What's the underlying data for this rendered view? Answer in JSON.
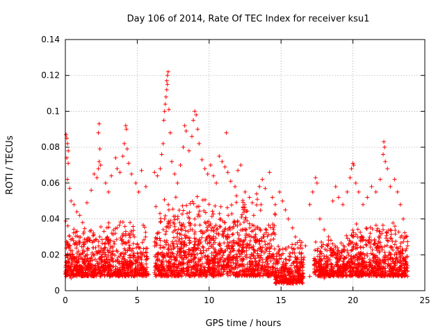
{
  "chart_data": {
    "type": "scatter",
    "title": "Day 106 of 2014, Rate Of TEC Index for receiver ksu1",
    "xlabel": "GPS time / hours",
    "ylabel": "ROTI / TECUs",
    "xlim": [
      0,
      25
    ],
    "ylim": [
      0,
      0.14
    ],
    "xticks": [
      0,
      5,
      10,
      15,
      20,
      25
    ],
    "xtick_labels": [
      "0",
      "5",
      "10",
      "15",
      "20",
      "25"
    ],
    "yticks": [
      0,
      0.02,
      0.04,
      0.06,
      0.08,
      0.1,
      0.12,
      0.14
    ],
    "ytick_labels": [
      "0",
      "0.02",
      "0.04",
      "0.06",
      "0.08",
      "0.1",
      "0.12",
      "0.14"
    ],
    "grid": true,
    "marker": "plus",
    "series_color": "#ff0000",
    "series": [
      {
        "name": "ROTI",
        "points": [
          [
            0.05,
            0.087
          ],
          [
            0.1,
            0.085
          ],
          [
            0.15,
            0.082
          ],
          [
            0.2,
            0.078
          ],
          [
            0.1,
            0.074
          ],
          [
            0.2,
            0.071
          ],
          [
            0.15,
            0.062
          ],
          [
            0.3,
            0.057
          ],
          [
            0.4,
            0.05
          ],
          [
            0.6,
            0.048
          ],
          [
            0.8,
            0.044
          ],
          [
            1.0,
            0.042
          ],
          [
            1.2,
            0.038
          ],
          [
            1.5,
            0.049
          ],
          [
            1.8,
            0.056
          ],
          [
            2.0,
            0.065
          ],
          [
            2.2,
            0.063
          ],
          [
            2.3,
            0.068
          ],
          [
            2.35,
            0.072
          ],
          [
            2.3,
            0.088
          ],
          [
            2.35,
            0.093
          ],
          [
            2.4,
            0.079
          ],
          [
            2.45,
            0.07
          ],
          [
            2.8,
            0.06
          ],
          [
            3.0,
            0.055
          ],
          [
            3.2,
            0.064
          ],
          [
            3.5,
            0.074
          ],
          [
            3.6,
            0.068
          ],
          [
            3.8,
            0.066
          ],
          [
            4.0,
            0.075
          ],
          [
            4.1,
            0.082
          ],
          [
            4.2,
            0.092
          ],
          [
            4.25,
            0.09
          ],
          [
            4.3,
            0.079
          ],
          [
            4.4,
            0.071
          ],
          [
            4.6,
            0.065
          ],
          [
            4.9,
            0.06
          ],
          [
            5.1,
            0.055
          ],
          [
            5.3,
            0.067
          ],
          [
            5.6,
            0.058
          ],
          [
            6.2,
            0.066
          ],
          [
            6.4,
            0.064
          ],
          [
            6.6,
            0.068
          ],
          [
            6.7,
            0.076
          ],
          [
            6.8,
            0.082
          ],
          [
            6.85,
            0.095
          ],
          [
            6.9,
            0.1
          ],
          [
            6.95,
            0.104
          ],
          [
            7.0,
            0.108
          ],
          [
            7.05,
            0.112
          ],
          [
            7.05,
            0.117
          ],
          [
            7.1,
            0.12
          ],
          [
            7.15,
            0.122
          ],
          [
            7.1,
            0.115
          ],
          [
            7.2,
            0.101
          ],
          [
            7.3,
            0.088
          ],
          [
            7.4,
            0.072
          ],
          [
            7.6,
            0.065
          ],
          [
            7.8,
            0.06
          ],
          [
            8.0,
            0.07
          ],
          [
            8.2,
            0.08
          ],
          [
            8.3,
            0.092
          ],
          [
            8.4,
            0.089
          ],
          [
            8.6,
            0.078
          ],
          [
            8.8,
            0.086
          ],
          [
            8.9,
            0.095
          ],
          [
            9.0,
            0.1
          ],
          [
            9.1,
            0.098
          ],
          [
            9.2,
            0.09
          ],
          [
            9.3,
            0.082
          ],
          [
            9.5,
            0.073
          ],
          [
            9.7,
            0.068
          ],
          [
            9.9,
            0.065
          ],
          [
            10.1,
            0.07
          ],
          [
            10.3,
            0.064
          ],
          [
            10.5,
            0.06
          ],
          [
            10.7,
            0.075
          ],
          [
            10.9,
            0.072
          ],
          [
            11.1,
            0.069
          ],
          [
            11.2,
            0.088
          ],
          [
            11.3,
            0.066
          ],
          [
            11.5,
            0.061
          ],
          [
            11.8,
            0.058
          ],
          [
            12.0,
            0.067
          ],
          [
            12.2,
            0.07
          ],
          [
            12.5,
            0.055
          ],
          [
            12.8,
            0.052
          ],
          [
            13.0,
            0.049
          ],
          [
            13.3,
            0.054
          ],
          [
            13.5,
            0.058
          ],
          [
            13.7,
            0.062
          ],
          [
            13.9,
            0.057
          ],
          [
            14.2,
            0.066
          ],
          [
            14.4,
            0.052
          ],
          [
            14.6,
            0.048
          ],
          [
            14.9,
            0.055
          ],
          [
            15.1,
            0.05
          ],
          [
            15.3,
            0.045
          ],
          [
            15.5,
            0.04
          ],
          [
            15.8,
            0.035
          ],
          [
            16.0,
            0.03
          ],
          [
            16.3,
            0.028
          ],
          [
            16.7,
            0.025
          ],
          [
            17.0,
            0.048
          ],
          [
            17.2,
            0.055
          ],
          [
            17.4,
            0.063
          ],
          [
            17.5,
            0.06
          ],
          [
            17.7,
            0.04
          ],
          [
            18.0,
            0.034
          ],
          [
            18.3,
            0.03
          ],
          [
            18.6,
            0.05
          ],
          [
            18.8,
            0.058
          ],
          [
            19.0,
            0.052
          ],
          [
            19.3,
            0.048
          ],
          [
            19.6,
            0.055
          ],
          [
            19.8,
            0.063
          ],
          [
            19.9,
            0.068
          ],
          [
            20.0,
            0.071
          ],
          [
            20.05,
            0.07
          ],
          [
            20.2,
            0.06
          ],
          [
            20.4,
            0.055
          ],
          [
            20.7,
            0.048
          ],
          [
            21.0,
            0.052
          ],
          [
            21.3,
            0.058
          ],
          [
            21.6,
            0.055
          ],
          [
            21.9,
            0.062
          ],
          [
            22.1,
            0.076
          ],
          [
            22.15,
            0.083
          ],
          [
            22.2,
            0.08
          ],
          [
            22.25,
            0.072
          ],
          [
            22.4,
            0.068
          ],
          [
            22.6,
            0.058
          ],
          [
            22.9,
            0.062
          ],
          [
            23.1,
            0.055
          ],
          [
            23.3,
            0.048
          ],
          [
            23.5,
            0.04
          ],
          [
            23.7,
            0.03
          ],
          [
            23.8,
            0.025
          ],
          [
            0.1,
            0.014
          ],
          [
            0.3,
            0.012
          ],
          [
            0.6,
            0.018
          ],
          [
            0.9,
            0.022
          ],
          [
            1.2,
            0.016
          ],
          [
            1.5,
            0.02
          ],
          [
            1.8,
            0.013
          ],
          [
            2.1,
            0.024
          ],
          [
            2.4,
            0.03
          ],
          [
            2.7,
            0.019
          ],
          [
            3.0,
            0.026
          ],
          [
            3.3,
            0.022
          ],
          [
            3.6,
            0.035
          ],
          [
            3.9,
            0.028
          ],
          [
            4.2,
            0.033
          ],
          [
            4.5,
            0.038
          ],
          [
            4.8,
            0.03
          ],
          [
            5.1,
            0.024
          ],
          [
            5.4,
            0.021
          ],
          [
            5.7,
            0.018
          ],
          [
            6.3,
            0.02
          ],
          [
            6.6,
            0.028
          ],
          [
            6.9,
            0.04
          ],
          [
            7.2,
            0.045
          ],
          [
            7.5,
            0.038
          ],
          [
            7.8,
            0.032
          ],
          [
            8.1,
            0.036
          ],
          [
            8.4,
            0.03
          ],
          [
            8.7,
            0.034
          ],
          [
            9.0,
            0.04
          ],
          [
            9.3,
            0.028
          ],
          [
            9.6,
            0.024
          ],
          [
            9.9,
            0.03
          ],
          [
            10.2,
            0.035
          ],
          [
            10.5,
            0.032
          ],
          [
            10.8,
            0.04
          ],
          [
            11.1,
            0.038
          ],
          [
            11.4,
            0.03
          ],
          [
            11.7,
            0.028
          ],
          [
            12.0,
            0.026
          ],
          [
            12.3,
            0.024
          ],
          [
            12.6,
            0.02
          ],
          [
            12.9,
            0.018
          ],
          [
            13.2,
            0.022
          ],
          [
            13.5,
            0.026
          ],
          [
            13.8,
            0.03
          ],
          [
            14.1,
            0.024
          ],
          [
            14.4,
            0.02
          ],
          [
            14.7,
            0.016
          ],
          [
            15.0,
            0.018
          ],
          [
            15.3,
            0.014
          ],
          [
            15.6,
            0.012
          ],
          [
            15.9,
            0.016
          ],
          [
            16.2,
            0.01
          ],
          [
            16.5,
            0.013
          ],
          [
            17.3,
            0.018
          ],
          [
            17.6,
            0.015
          ],
          [
            17.9,
            0.012
          ],
          [
            18.2,
            0.016
          ],
          [
            18.5,
            0.02
          ],
          [
            18.8,
            0.024
          ],
          [
            19.1,
            0.018
          ],
          [
            19.4,
            0.022
          ],
          [
            19.7,
            0.026
          ],
          [
            20.0,
            0.03
          ],
          [
            20.3,
            0.024
          ],
          [
            20.6,
            0.02
          ],
          [
            20.9,
            0.028
          ],
          [
            21.2,
            0.032
          ],
          [
            21.5,
            0.026
          ],
          [
            21.8,
            0.03
          ],
          [
            22.1,
            0.034
          ],
          [
            22.4,
            0.028
          ],
          [
            22.7,
            0.024
          ],
          [
            23.0,
            0.018
          ],
          [
            23.3,
            0.016
          ],
          [
            23.6,
            0.013
          ],
          [
            23.8,
            0.011
          ],
          [
            0.05,
            0.008
          ],
          [
            0.4,
            0.007
          ],
          [
            0.8,
            0.009
          ],
          [
            1.4,
            0.01
          ],
          [
            2.0,
            0.008
          ],
          [
            2.6,
            0.011
          ],
          [
            3.4,
            0.009
          ],
          [
            4.4,
            0.012
          ],
          [
            5.2,
            0.01
          ],
          [
            5.8,
            0.009
          ],
          [
            6.2,
            0.01
          ],
          [
            6.8,
            0.012
          ],
          [
            7.6,
            0.011
          ],
          [
            8.5,
            0.01
          ],
          [
            9.4,
            0.011
          ],
          [
            10.4,
            0.012
          ],
          [
            11.3,
            0.01
          ],
          [
            12.4,
            0.011
          ],
          [
            13.4,
            0.009
          ],
          [
            14.3,
            0.01
          ],
          [
            15.2,
            0.006
          ],
          [
            15.7,
            0.004
          ],
          [
            16.1,
            0.007
          ],
          [
            17.0,
            0.008
          ],
          [
            18.0,
            0.007
          ],
          [
            19.0,
            0.009
          ],
          [
            20.2,
            0.01
          ],
          [
            21.0,
            0.011
          ],
          [
            21.8,
            0.01
          ],
          [
            22.6,
            0.009
          ],
          [
            23.4,
            0.008
          ],
          [
            23.8,
            0.008
          ]
        ],
        "dense_bands": [
          {
            "x_range": [
              0.0,
              5.7
            ],
            "y_range": [
              0.008,
              0.04
            ]
          },
          {
            "x_range": [
              6.2,
              14.6
            ],
            "y_range": [
              0.008,
              0.055
            ]
          },
          {
            "x_range": [
              14.6,
              16.6
            ],
            "y_range": [
              0.004,
              0.03
            ]
          },
          {
            "x_range": [
              17.3,
              19.5
            ],
            "y_range": [
              0.008,
              0.03
            ]
          },
          {
            "x_range": [
              19.5,
              23.8
            ],
            "y_range": [
              0.008,
              0.04
            ]
          }
        ],
        "dense_density_per_hour": 150
      }
    ]
  }
}
